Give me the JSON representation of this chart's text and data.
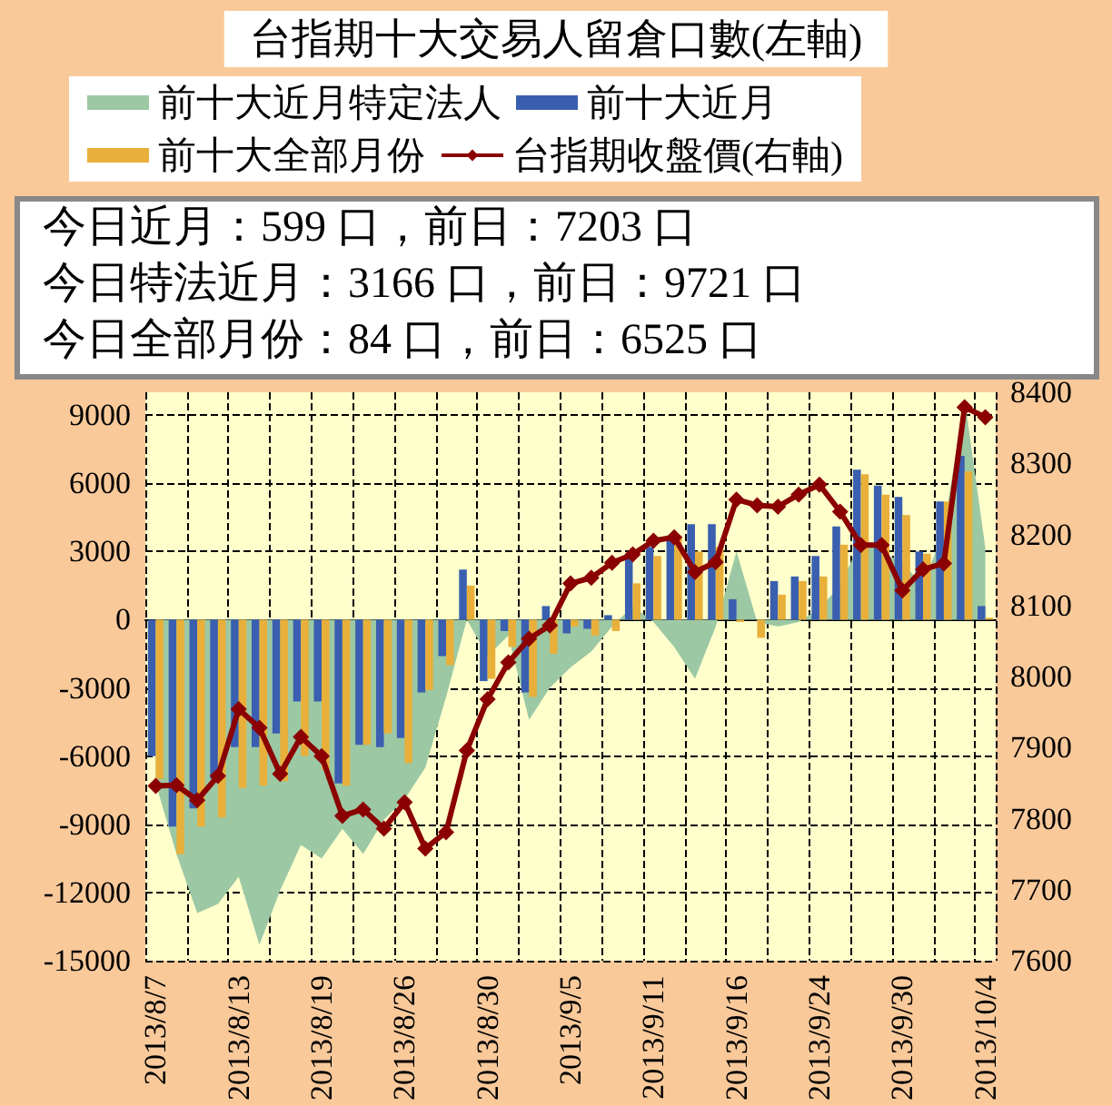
{
  "chart_data": {
    "type": "bar",
    "title": "台指期十大交易人留倉口數(左軸)",
    "categories": [
      "2013/8/7",
      null,
      null,
      null,
      "2013/8/13",
      null,
      null,
      null,
      "2013/8/19",
      null,
      null,
      null,
      "2013/8/26",
      null,
      null,
      null,
      "2013/8/30",
      null,
      null,
      null,
      "2013/9/5",
      null,
      null,
      null,
      "2013/9/11",
      null,
      null,
      null,
      "2013/9/16",
      null,
      null,
      null,
      "2013/9/24",
      null,
      null,
      null,
      "2013/9/30",
      null,
      null,
      null,
      "2013/10/4"
    ],
    "series": [
      {
        "name": "前十大近月特定法人",
        "type": "area",
        "color": "#9cc8a4",
        "values": [
          -7200,
          -10300,
          -12900,
          -12500,
          -11300,
          -14300,
          -11900,
          -9900,
          -10500,
          -9200,
          -10300,
          -8800,
          -7900,
          -6500,
          -3400,
          0,
          -1600,
          -700,
          -4400,
          -3000,
          -2100,
          -1400,
          -300,
          600,
          -100,
          -1200,
          -2600,
          -300,
          3000,
          -100,
          -300,
          -100,
          500,
          1500,
          3500,
          3000,
          2500,
          1500,
          4000,
          9721,
          3166
        ]
      },
      {
        "name": "前十大近月",
        "color": "#3a5fb0",
        "values": [
          -6000,
          -9100,
          -8300,
          -7000,
          -5600,
          -5600,
          -5000,
          -3600,
          -3600,
          -7200,
          -5500,
          -5600,
          -5200,
          -3200,
          -1600,
          2200,
          -2700,
          -500,
          -3200,
          600,
          -600,
          -400,
          200,
          2700,
          3200,
          3700,
          4200,
          4200,
          900,
          0,
          1700,
          1900,
          2800,
          4100,
          6600,
          5900,
          5400,
          3000,
          5200,
          7203,
          599
        ]
      },
      {
        "name": "前十大全部月份",
        "color": "#e8b03a",
        "values": [
          -7000,
          -10300,
          -9100,
          -8700,
          -7400,
          -7300,
          -7100,
          -6000,
          -6600,
          -7300,
          -5500,
          -5000,
          -6300,
          -3100,
          -2000,
          1500,
          -2600,
          -1200,
          -3400,
          -1500,
          -300,
          -700,
          -500,
          1600,
          2800,
          3700,
          3000,
          3200,
          -100,
          -800,
          1100,
          1700,
          1900,
          3300,
          6400,
          5500,
          4600,
          2900,
          5200,
          6525,
          84
        ]
      },
      {
        "name": "台指期收盤價(右軸)",
        "type": "line",
        "marker": "diamond",
        "axis": "y2",
        "color": "#8b0000",
        "values": [
          7846,
          7847,
          7826,
          7860,
          7954,
          7928,
          7863,
          7915,
          7888,
          7804,
          7813,
          7786,
          7823,
          7758,
          7781,
          7896,
          7968,
          8020,
          8053,
          8072,
          8131,
          8139,
          8160,
          8172,
          8191,
          8196,
          8147,
          8161,
          8249,
          8241,
          8239,
          8256,
          8270,
          8232,
          8185,
          8185,
          8121,
          8151,
          8159,
          8379,
          8365
        ]
      }
    ],
    "ylim": [
      -15000,
      10000
    ],
    "yticks": [
      -15000,
      -12000,
      -9000,
      -6000,
      -3000,
      0,
      3000,
      6000,
      9000
    ],
    "y2lim": [
      7600,
      8400
    ],
    "y2ticks": [
      7600,
      7700,
      7800,
      7900,
      8000,
      8100,
      8200,
      8300,
      8400
    ],
    "annotations": [
      "今日近月：599 口，前日：7203 口",
      "今日特法近月：3166 口，前日：9721 口",
      "今日全部月份：84 口，前日：6525 口"
    ],
    "grid": true,
    "legend": "top"
  }
}
